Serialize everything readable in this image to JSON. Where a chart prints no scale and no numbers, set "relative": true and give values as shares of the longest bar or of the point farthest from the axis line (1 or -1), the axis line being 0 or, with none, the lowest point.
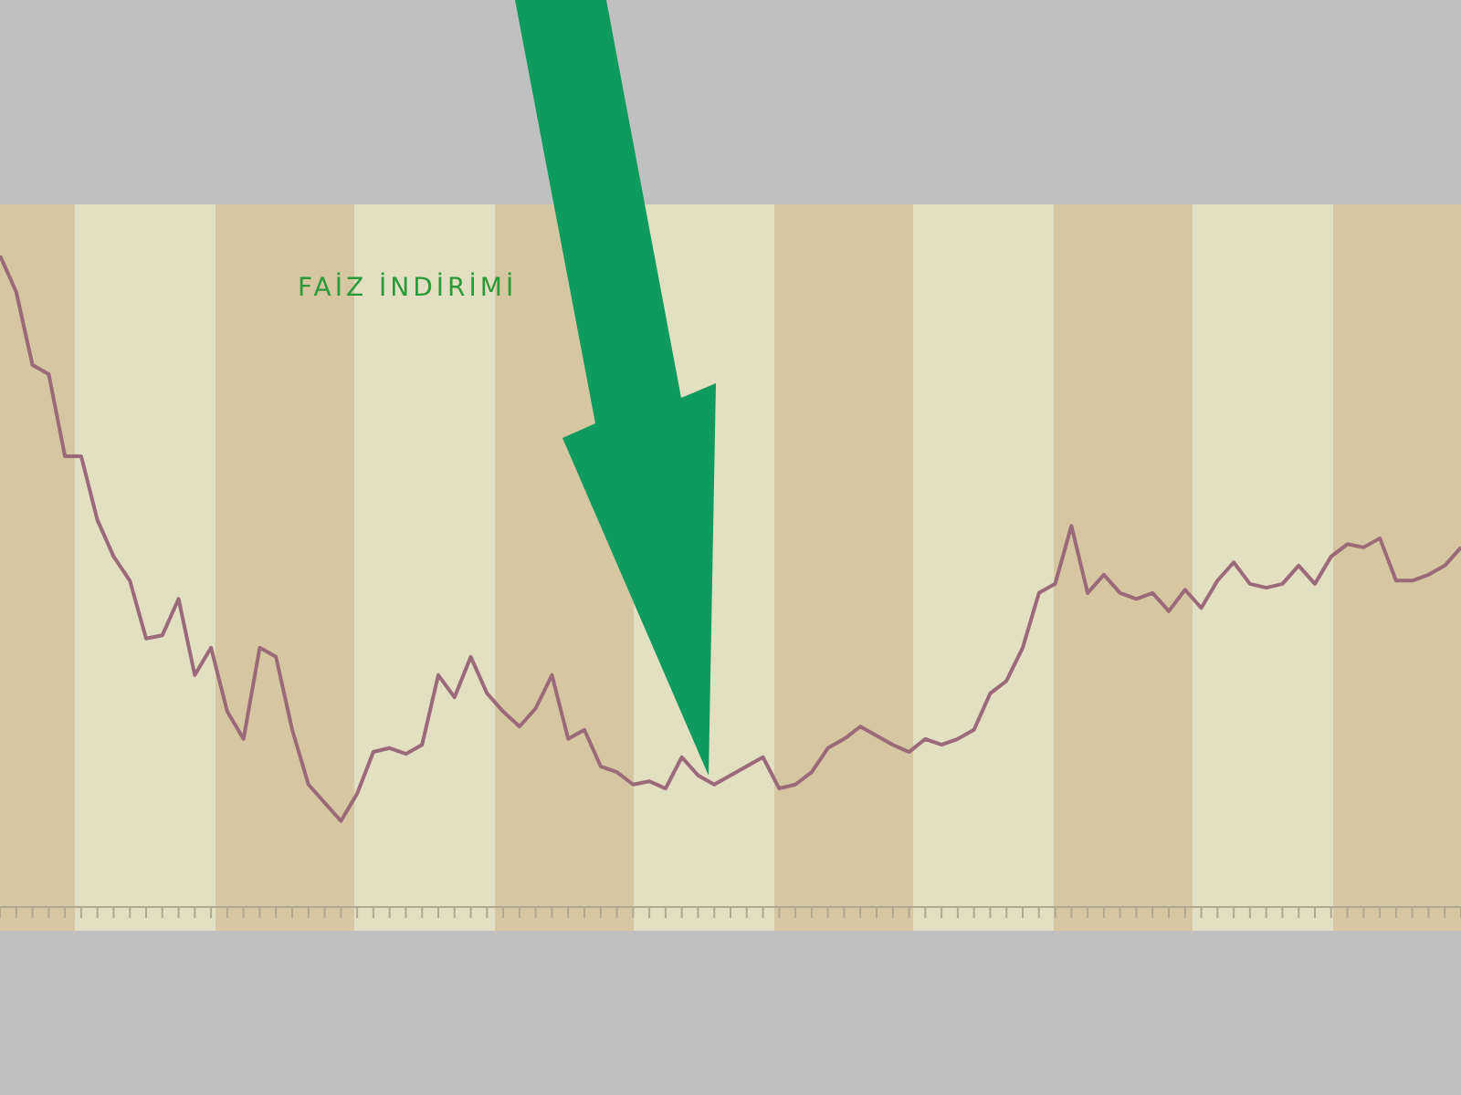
{
  "chart_data": {
    "type": "line",
    "relative": true,
    "color": "#9a6a78",
    "annotations": [
      "FAİZ İNDİRİMİ"
    ],
    "categories": [
      null,
      null,
      null,
      null,
      null,
      null,
      null,
      null,
      null,
      null,
      null,
      null,
      null,
      null,
      null,
      null,
      null,
      null,
      null,
      null,
      null,
      null,
      null,
      null,
      null,
      null,
      null,
      null,
      null,
      null,
      null,
      null,
      null,
      null,
      null,
      null,
      null,
      null,
      null,
      null,
      null,
      null,
      null,
      null,
      null,
      null,
      null,
      null,
      null,
      null,
      null,
      null,
      null,
      null,
      null,
      null,
      null,
      null,
      null,
      null,
      null,
      null,
      null,
      null,
      null,
      null,
      null,
      null,
      null,
      null,
      null,
      null,
      null,
      null,
      null,
      null,
      null,
      null,
      null,
      null,
      null,
      null,
      null,
      null,
      null,
      null,
      null,
      null,
      null,
      null,
      null
    ],
    "values": [
      1.0,
      0.944,
      0.832,
      0.818,
      0.692,
      0.692,
      0.594,
      0.538,
      0.501,
      0.412,
      0.417,
      0.473,
      0.356,
      0.398,
      0.3,
      0.258,
      0.398,
      0.384,
      0.272,
      0.188,
      0.16,
      0.132,
      0.174,
      0.238,
      0.244,
      0.235,
      0.249,
      0.356,
      0.322,
      0.384,
      0.328,
      0.3,
      0.277,
      0.305,
      0.356,
      0.258,
      0.272,
      0.216,
      0.207,
      0.188,
      0.193,
      0.182,
      0.23,
      0.202,
      0.188,
      0.202,
      0.216,
      0.23,
      0.182,
      0.188,
      0.207,
      0.244,
      0.258,
      0.277,
      0.263,
      0.249,
      0.238,
      0.258,
      0.249,
      0.258,
      0.272,
      0.328,
      0.347,
      0.398,
      0.482,
      0.496,
      0.585,
      0.482,
      0.51,
      0.482,
      0.473,
      0.482,
      0.454,
      0.487,
      0.459,
      0.501,
      0.529,
      0.496,
      0.49,
      0.496,
      0.524,
      0.496,
      0.538,
      0.557,
      0.552,
      0.566,
      0.501,
      0.501,
      0.51,
      0.524,
      0.552
    ]
  }
}
